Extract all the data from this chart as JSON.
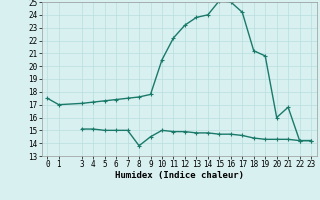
{
  "line1_x": [
    0,
    1,
    3,
    4,
    5,
    6,
    7,
    8,
    9,
    10,
    11,
    12,
    13,
    14,
    15,
    16,
    17,
    18,
    19,
    20,
    21,
    22,
    23
  ],
  "line1_y": [
    17.5,
    17.0,
    17.1,
    17.2,
    17.3,
    17.4,
    17.5,
    17.6,
    17.8,
    20.5,
    22.2,
    23.2,
    23.8,
    24.0,
    25.1,
    25.0,
    24.2,
    21.2,
    20.8,
    16.0,
    16.8,
    14.2,
    14.2
  ],
  "line2_x": [
    3,
    4,
    5,
    6,
    7,
    8,
    9,
    10,
    11,
    12,
    13,
    14,
    15,
    16,
    17,
    18,
    19,
    20,
    21,
    22,
    23
  ],
  "line2_y": [
    15.1,
    15.1,
    15.0,
    15.0,
    15.0,
    13.8,
    14.5,
    15.0,
    14.9,
    14.9,
    14.8,
    14.8,
    14.7,
    14.7,
    14.6,
    14.4,
    14.3,
    14.3,
    14.3,
    14.2,
    14.2
  ],
  "line_color": "#1a7a6a",
  "bg_color": "#d8f0f0",
  "grid_color": "#b8dede",
  "xlabel": "Humidex (Indice chaleur)",
  "ylim": [
    13,
    25
  ],
  "xlim": [
    -0.5,
    23.5
  ],
  "yticks": [
    13,
    14,
    15,
    16,
    17,
    18,
    19,
    20,
    21,
    22,
    23,
    24,
    25
  ],
  "xticks": [
    0,
    1,
    3,
    4,
    5,
    6,
    7,
    8,
    9,
    10,
    11,
    12,
    13,
    14,
    15,
    16,
    17,
    18,
    19,
    20,
    21,
    22,
    23
  ],
  "xtick_labels": [
    "0",
    "1",
    "3",
    "4",
    "5",
    "6",
    "7",
    "8",
    "9",
    "10",
    "11",
    "12",
    "13",
    "14",
    "15",
    "16",
    "17",
    "18",
    "19",
    "20",
    "21",
    "22",
    "23"
  ],
  "marker": "+",
  "markersize": 3,
  "linewidth": 1.0,
  "tick_fontsize": 5.5,
  "xlabel_fontsize": 6.5
}
